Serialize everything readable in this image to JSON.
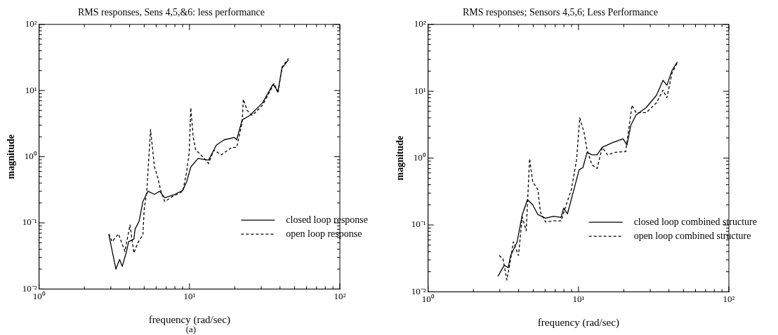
{
  "chart_data": [
    {
      "type": "line",
      "title": "RMS responses, Sens 4,5,&6: less performance",
      "xlabel": "frequency (rad/sec)",
      "ylabel": "magnitude",
      "annotations": [
        "(a)"
      ],
      "log": "xy",
      "grid": false,
      "legend": "bottom right",
      "marker": "none",
      "xlim": [
        1,
        100
      ],
      "ylim": [
        0.01,
        100
      ],
      "xticks": [
        {
          "value": 1,
          "label": "10⁰"
        },
        {
          "value": 2,
          "label": null
        },
        {
          "value": 3,
          "label": null
        },
        {
          "value": 4,
          "label": null
        },
        {
          "value": 5,
          "label": null
        },
        {
          "value": 6,
          "label": null
        },
        {
          "value": 7,
          "label": null
        },
        {
          "value": 8,
          "label": null
        },
        {
          "value": 9,
          "label": null
        },
        {
          "value": 10,
          "label": "10¹"
        },
        {
          "value": 20,
          "label": null
        },
        {
          "value": 30,
          "label": null
        },
        {
          "value": 40,
          "label": null
        },
        {
          "value": 50,
          "label": null
        },
        {
          "value": 60,
          "label": null
        },
        {
          "value": 70,
          "label": null
        },
        {
          "value": 80,
          "label": null
        },
        {
          "value": 90,
          "label": null
        },
        {
          "value": 100,
          "label": "10²"
        }
      ],
      "yticks": [
        {
          "value": 0.01,
          "label": "10⁻²"
        },
        {
          "value": 0.02,
          "label": null
        },
        {
          "value": 0.03,
          "label": null
        },
        {
          "value": 0.04,
          "label": null
        },
        {
          "value": 0.05,
          "label": null
        },
        {
          "value": 0.06,
          "label": null
        },
        {
          "value": 0.07,
          "label": null
        },
        {
          "value": 0.08,
          "label": null
        },
        {
          "value": 0.09,
          "label": null
        },
        {
          "value": 0.1,
          "label": "10⁻¹"
        },
        {
          "value": 0.2,
          "label": null
        },
        {
          "value": 0.3,
          "label": null
        },
        {
          "value": 0.4,
          "label": null
        },
        {
          "value": 0.5,
          "label": null
        },
        {
          "value": 0.6,
          "label": null
        },
        {
          "value": 0.7,
          "label": null
        },
        {
          "value": 0.8,
          "label": null
        },
        {
          "value": 0.9,
          "label": null
        },
        {
          "value": 1,
          "label": "10⁰"
        },
        {
          "value": 2,
          "label": null
        },
        {
          "value": 3,
          "label": null
        },
        {
          "value": 4,
          "label": null
        },
        {
          "value": 5,
          "label": null
        },
        {
          "value": 6,
          "label": null
        },
        {
          "value": 7,
          "label": null
        },
        {
          "value": 8,
          "label": null
        },
        {
          "value": 9,
          "label": null
        },
        {
          "value": 10,
          "label": "10¹"
        },
        {
          "value": 20,
          "label": null
        },
        {
          "value": 30,
          "label": null
        },
        {
          "value": 40,
          "label": null
        },
        {
          "value": 50,
          "label": null
        },
        {
          "value": 60,
          "label": null
        },
        {
          "value": 70,
          "label": null
        },
        {
          "value": 80,
          "label": null
        },
        {
          "value": 90,
          "label": null
        },
        {
          "value": 100,
          "label": "10²"
        }
      ],
      "series": [
        {
          "name": "closed loop response",
          "color": "#000000",
          "line_style": "solid",
          "x": [
            2.91,
            3.24,
            3.43,
            3.57,
            3.79,
            3.94,
            4.27,
            4.35,
            4.62,
            4.9,
            5.3,
            5.85,
            6.33,
            6.85,
            8.02,
            9.02,
            9.58,
            10.2,
            11.4,
            13.4,
            15.1,
            17.0,
            19.9,
            20.6,
            22.4,
            25.2,
            30.6,
            35.9,
            38.8,
            41.2,
            45.5
          ],
          "values": [
            0.066,
            0.02,
            0.028,
            0.022,
            0.035,
            0.052,
            0.057,
            0.081,
            0.105,
            0.21,
            0.3,
            0.27,
            0.3,
            0.24,
            0.27,
            0.31,
            0.42,
            0.7,
            0.94,
            0.89,
            1.5,
            1.8,
            1.95,
            1.8,
            3.6,
            4.2,
            6.5,
            12.4,
            9.8,
            21.7,
            29.2
          ]
        },
        {
          "name": "open loop response",
          "color": "#000000",
          "line_style": "dashed",
          "x": [
            2.91,
            3.06,
            3.37,
            3.72,
            4.02,
            4.27,
            4.53,
            4.9,
            5.0,
            5.2,
            5.51,
            5.85,
            6.08,
            6.46,
            6.85,
            7.71,
            9.02,
            9.58,
            9.96,
            10.2,
            10.6,
            11.0,
            11.9,
            13.4,
            14.5,
            16.3,
            19.1,
            20.6,
            22.4,
            22.8,
            24.2,
            26.2,
            30.6,
            36.6,
            38.8,
            41.2,
            45.5
          ],
          "values": [
            0.068,
            0.052,
            0.068,
            0.037,
            0.093,
            0.035,
            0.05,
            0.066,
            0.162,
            0.3,
            2.57,
            0.7,
            0.54,
            0.3,
            0.21,
            0.25,
            0.3,
            0.59,
            1.17,
            5.5,
            1.95,
            1.26,
            1.07,
            0.79,
            1.26,
            1.07,
            1.38,
            1.38,
            3.27,
            7.4,
            5.0,
            4.2,
            6.0,
            12.9,
            9.1,
            22.6,
            30.5
          ]
        }
      ]
    },
    {
      "type": "line",
      "title": "RMS responses; Sensors 4,5,6; Less Performance",
      "xlabel": "frequency (rad/sec)",
      "ylabel": "magnitude",
      "log": "xy",
      "grid": false,
      "legend": "bottom right",
      "marker": "none",
      "xlim": [
        1,
        100
      ],
      "ylim": [
        0.01,
        100
      ],
      "xticks": [
        {
          "value": 1,
          "label": "10⁰"
        },
        {
          "value": 2,
          "label": null
        },
        {
          "value": 3,
          "label": null
        },
        {
          "value": 4,
          "label": null
        },
        {
          "value": 5,
          "label": null
        },
        {
          "value": 6,
          "label": null
        },
        {
          "value": 7,
          "label": null
        },
        {
          "value": 8,
          "label": null
        },
        {
          "value": 9,
          "label": null
        },
        {
          "value": 10,
          "label": "10¹"
        },
        {
          "value": 20,
          "label": null
        },
        {
          "value": 30,
          "label": null
        },
        {
          "value": 40,
          "label": null
        },
        {
          "value": 50,
          "label": null
        },
        {
          "value": 60,
          "label": null
        },
        {
          "value": 70,
          "label": null
        },
        {
          "value": 80,
          "label": null
        },
        {
          "value": 90,
          "label": null
        },
        {
          "value": 100,
          "label": "10²"
        }
      ],
      "yticks": [
        {
          "value": 0.01,
          "label": "10⁻²"
        },
        {
          "value": 0.02,
          "label": null
        },
        {
          "value": 0.03,
          "label": null
        },
        {
          "value": 0.04,
          "label": null
        },
        {
          "value": 0.05,
          "label": null
        },
        {
          "value": 0.06,
          "label": null
        },
        {
          "value": 0.07,
          "label": null
        },
        {
          "value": 0.08,
          "label": null
        },
        {
          "value": 0.09,
          "label": null
        },
        {
          "value": 0.1,
          "label": "10⁻¹"
        },
        {
          "value": 0.2,
          "label": null
        },
        {
          "value": 0.3,
          "label": null
        },
        {
          "value": 0.4,
          "label": null
        },
        {
          "value": 0.5,
          "label": null
        },
        {
          "value": 0.6,
          "label": null
        },
        {
          "value": 0.7,
          "label": null
        },
        {
          "value": 0.8,
          "label": null
        },
        {
          "value": 0.9,
          "label": null
        },
        {
          "value": 1,
          "label": "10⁰"
        },
        {
          "value": 2,
          "label": null
        },
        {
          "value": 3,
          "label": null
        },
        {
          "value": 4,
          "label": null
        },
        {
          "value": 5,
          "label": null
        },
        {
          "value": 6,
          "label": null
        },
        {
          "value": 7,
          "label": null
        },
        {
          "value": 8,
          "label": null
        },
        {
          "value": 9,
          "label": null
        },
        {
          "value": 10,
          "label": "10¹"
        },
        {
          "value": 20,
          "label": null
        },
        {
          "value": 30,
          "label": null
        },
        {
          "value": 40,
          "label": null
        },
        {
          "value": 50,
          "label": null
        },
        {
          "value": 60,
          "label": null
        },
        {
          "value": 70,
          "label": null
        },
        {
          "value": 80,
          "label": null
        },
        {
          "value": 90,
          "label": null
        },
        {
          "value": 100,
          "label": "10²"
        }
      ],
      "series": [
        {
          "name": "closed loop combined structure",
          "color": "#000000",
          "line_style": "solid",
          "x": [
            2.91,
            3.21,
            3.41,
            3.54,
            3.91,
            4.23,
            4.58,
            4.96,
            5.37,
            6.04,
            6.8,
            7.66,
            7.96,
            8.45,
            9.33,
            10.1,
            10.7,
            11.4,
            12.3,
            13.3,
            14.4,
            16.9,
            19.8,
            21.0,
            22.3,
            24.1,
            28.2,
            33.0,
            36.5,
            38.7,
            41.9,
            45.4
          ],
          "values": [
            0.017,
            0.025,
            0.023,
            0.035,
            0.056,
            0.143,
            0.24,
            0.2,
            0.143,
            0.126,
            0.135,
            0.13,
            0.178,
            0.147,
            0.34,
            0.67,
            0.72,
            1.22,
            1.12,
            1.12,
            1.45,
            1.71,
            1.94,
            1.57,
            3.1,
            4.4,
            5.7,
            8.7,
            14.6,
            12.3,
            20.4,
            27.5
          ]
        },
        {
          "name": "open loop combined structure",
          "color": "#000000",
          "line_style": "dashed",
          "x": [
            2.97,
            3.15,
            3.34,
            3.54,
            3.69,
            3.99,
            4.23,
            4.49,
            4.73,
            4.96,
            5.37,
            5.58,
            6.04,
            6.8,
            7.66,
            8.28,
            8.97,
            9.71,
            10.2,
            10.9,
            11.4,
            12.3,
            13.3,
            14.4,
            15.6,
            17.6,
            20.6,
            22.7,
            24.1,
            28.2,
            33.0,
            36.5,
            38.7,
            41.9,
            45.4
          ],
          "values": [
            0.035,
            0.031,
            0.015,
            0.031,
            0.056,
            0.035,
            0.132,
            0.082,
            0.98,
            0.44,
            0.34,
            0.156,
            0.111,
            0.115,
            0.115,
            0.2,
            0.34,
            0.94,
            4.0,
            2.4,
            1.33,
            0.79,
            0.7,
            1.45,
            1.12,
            1.22,
            1.25,
            6.2,
            4.8,
            4.8,
            6.7,
            10.4,
            8.0,
            18.8,
            26.5
          ]
        }
      ]
    }
  ]
}
